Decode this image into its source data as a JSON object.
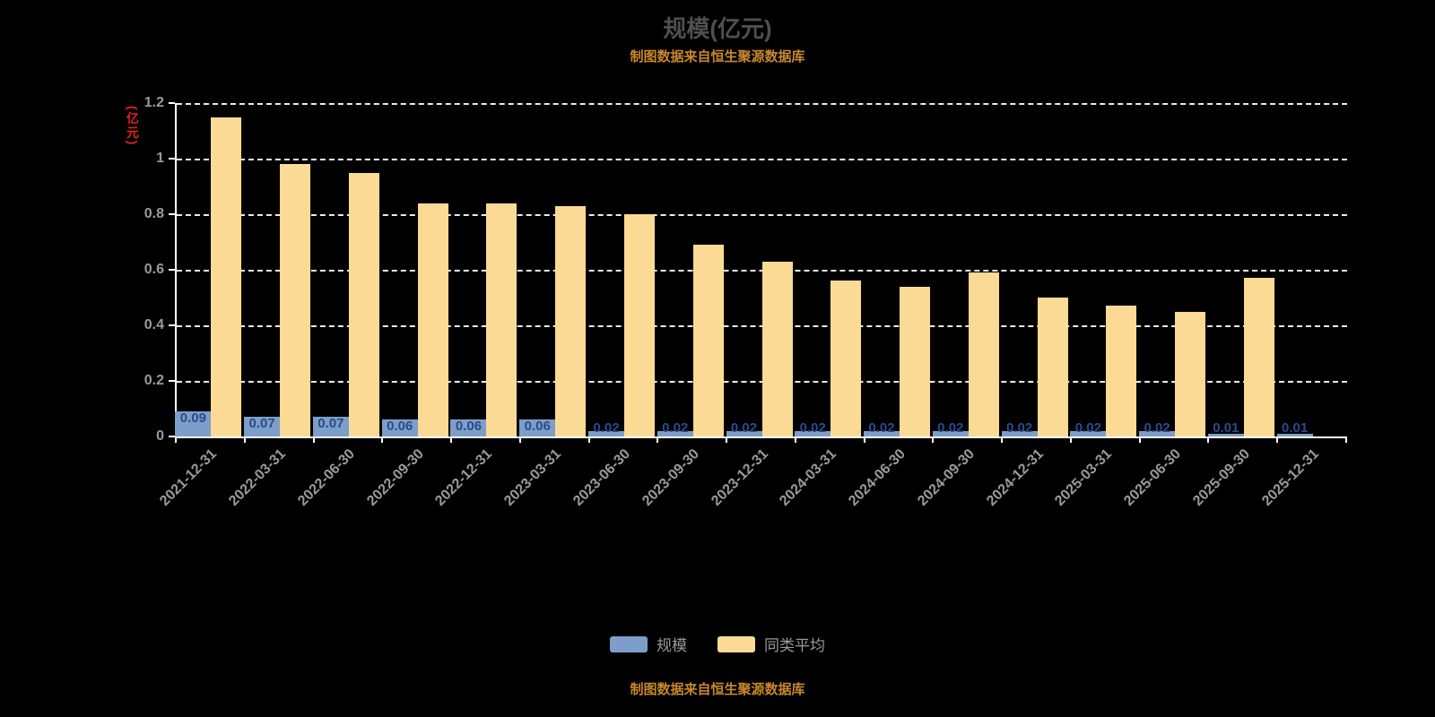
{
  "header": {
    "title": "规模(亿元)",
    "subtitle": "制图数据来自恒生聚源数据库"
  },
  "footer": {
    "source_note": "制图数据来自恒生聚源数据库"
  },
  "y_axis": {
    "title": "(亿元)",
    "tick_labels": [
      "0",
      "0.2",
      "0.4",
      "0.6",
      "0.8",
      "1",
      "1.2"
    ]
  },
  "legend": {
    "items": [
      {
        "label": "规模",
        "color": "#7d9ec9"
      },
      {
        "label": "同类平均",
        "color": "#fbda96"
      }
    ]
  },
  "colors": {
    "background": "#000000",
    "title": "#4f4f4f",
    "subtitle_orange": "#c9872b",
    "axis_red": "#e2231a",
    "axis_gray": "#9a9a9a",
    "grid_white": "#ffffff",
    "scale_bar_blue": "#7d9ec9",
    "average_bar_orange": "#fbda96",
    "bar_label_navy": "#2b4a8b"
  },
  "chart_data": {
    "type": "bar",
    "title": "规模(亿元)",
    "ylabel": "(亿元)",
    "ylim": [
      0,
      1.2
    ],
    "yticks": [
      0,
      0.2,
      0.4,
      0.6,
      0.8,
      1,
      1.2
    ],
    "grid": true,
    "grid_style": "dashed",
    "legend_position": "bottom",
    "categories": [
      "2021-12-31",
      "2022-03-31",
      "2022-06-30",
      "2022-09-30",
      "2022-12-31",
      "2023-03-31",
      "2023-06-30",
      "2023-09-30",
      "2023-12-31",
      "2024-03-31",
      "2024-06-30",
      "2024-09-30",
      "2024-12-31",
      "2025-03-31",
      "2025-06-30",
      "2025-09-30",
      "2025-12-31"
    ],
    "series": [
      {
        "name": "规模",
        "color": "#7d9ec9",
        "values": [
          0.09,
          0.07,
          0.07,
          0.06,
          0.06,
          0.06,
          0.02,
          0.02,
          0.02,
          0.02,
          0.02,
          0.02,
          0.02,
          0.02,
          0.02,
          0.01,
          0.01
        ],
        "labels": [
          "0.09",
          "0.07",
          "0.07",
          "0.06",
          "0.06",
          "0.06",
          "0.02",
          "0.02",
          "0.02",
          "0.02",
          "0.02",
          "0.02",
          "0.02",
          "0.02",
          "0.02",
          "0.01",
          "0.01"
        ]
      },
      {
        "name": "同类平均",
        "color": "#fbda96",
        "values": [
          1.15,
          0.98,
          0.95,
          0.84,
          0.84,
          0.83,
          0.8,
          0.69,
          0.63,
          0.56,
          0.54,
          0.59,
          0.5,
          0.47,
          0.45,
          0.57,
          null
        ]
      }
    ]
  }
}
